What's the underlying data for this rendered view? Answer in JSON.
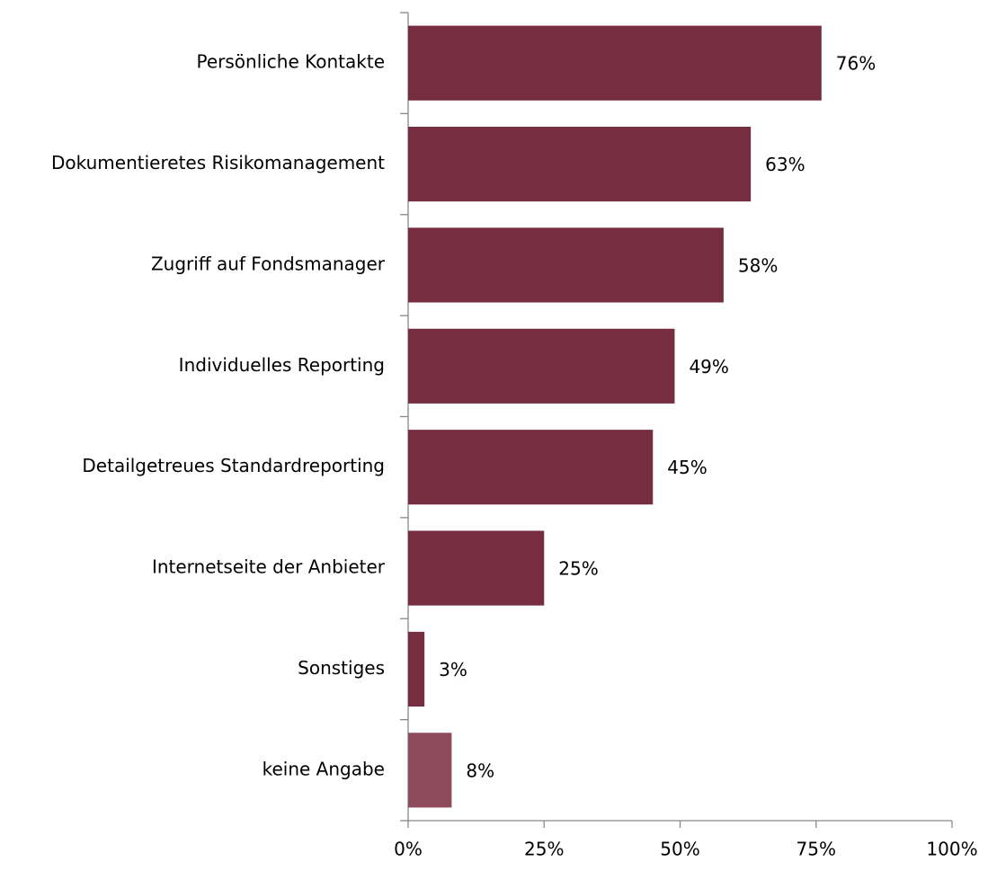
{
  "chart_data": {
    "type": "barh",
    "categories": [
      "Persönliche Kontakte",
      "Dokumentieretes Risikomanagement",
      "Zugriff auf Fondsmanager",
      "Individuelles Reporting",
      "Detailgetreues Standardreporting",
      "Internetseite der Anbieter",
      "Sonstiges",
      "keine Angabe"
    ],
    "values": [
      76,
      63,
      58,
      49,
      45,
      25,
      3,
      8
    ],
    "value_labels": [
      "76%",
      "63%",
      "58%",
      "49%",
      "45%",
      "25%",
      "3%",
      "8%"
    ],
    "colors": [
      "#772d40",
      "#772d40",
      "#772d40",
      "#772d40",
      "#772d40",
      "#772d40",
      "#772d40",
      "#8e4b59"
    ],
    "xlim": [
      0,
      100
    ],
    "xticks": [
      {
        "value": 0,
        "label": "0%"
      },
      {
        "value": 25,
        "label": "25%"
      },
      {
        "value": 50,
        "label": "50%"
      },
      {
        "value": 75,
        "label": "75%"
      },
      {
        "value": 100,
        "label": "100%"
      }
    ]
  }
}
